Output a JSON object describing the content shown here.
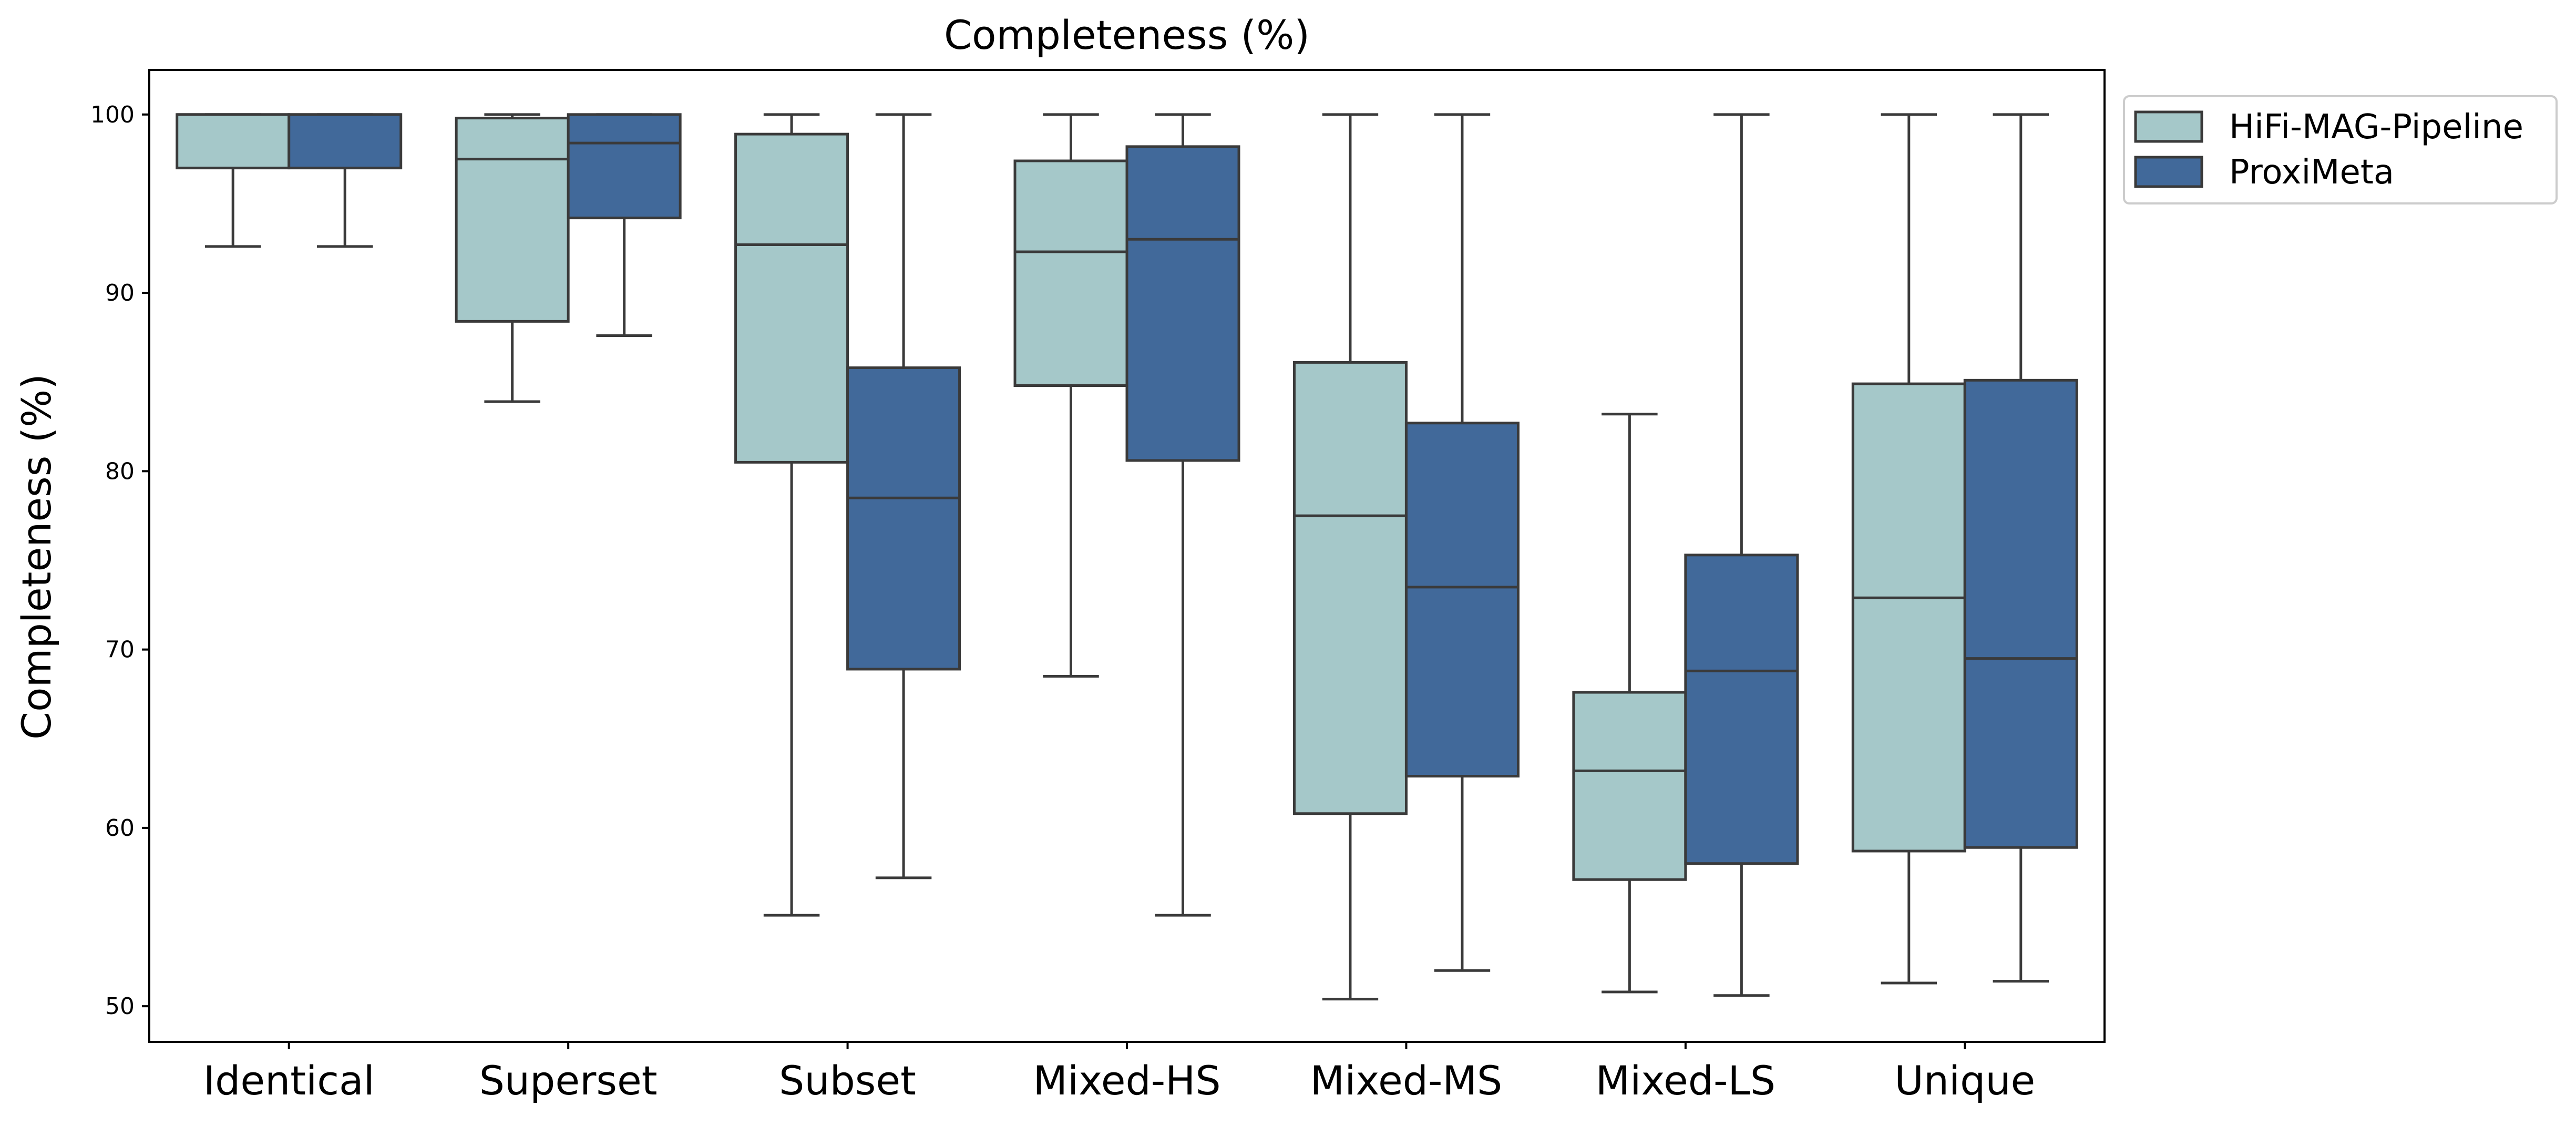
{
  "chart_data": {
    "type": "box",
    "title": "Completeness (%)",
    "xlabel": "",
    "ylabel": "Completeness (%)",
    "ylim": [
      48,
      102.5
    ],
    "yticks": [
      50,
      60,
      70,
      80,
      90,
      100
    ],
    "categories": [
      "Identical",
      "Superset",
      "Subset",
      "Mixed-HS",
      "Mixed-MS",
      "Mixed-LS",
      "Unique"
    ],
    "legend_position": "upper right, outside plot",
    "grid": false,
    "series": [
      {
        "name": "HiFi-MAG-Pipeline",
        "color": "#A5C8C9",
        "boxes": [
          {
            "whisker_low": 92.6,
            "q1": 97.0,
            "median": 100.0,
            "q3": 100.0,
            "whisker_high": 100.0
          },
          {
            "whisker_low": 83.9,
            "q1": 88.4,
            "median": 97.5,
            "q3": 99.8,
            "whisker_high": 100.0
          },
          {
            "whisker_low": 55.1,
            "q1": 80.5,
            "median": 92.7,
            "q3": 98.9,
            "whisker_high": 100.0
          },
          {
            "whisker_low": 68.5,
            "q1": 84.8,
            "median": 92.3,
            "q3": 97.4,
            "whisker_high": 100.0
          },
          {
            "whisker_low": 50.4,
            "q1": 60.8,
            "median": 77.5,
            "q3": 86.1,
            "whisker_high": 100.0
          },
          {
            "whisker_low": 50.8,
            "q1": 57.1,
            "median": 63.2,
            "q3": 67.6,
            "whisker_high": 83.2
          },
          {
            "whisker_low": 51.3,
            "q1": 58.7,
            "median": 72.9,
            "q3": 84.9,
            "whisker_high": 100.0
          }
        ]
      },
      {
        "name": "ProxiMeta",
        "color": "#41699A",
        "boxes": [
          {
            "whisker_low": 92.6,
            "q1": 97.0,
            "median": 100.0,
            "q3": 100.0,
            "whisker_high": 100.0
          },
          {
            "whisker_low": 87.6,
            "q1": 94.2,
            "median": 98.4,
            "q3": 100.0,
            "whisker_high": 100.0
          },
          {
            "whisker_low": 57.2,
            "q1": 68.9,
            "median": 78.5,
            "q3": 85.8,
            "whisker_high": 100.0
          },
          {
            "whisker_low": 55.1,
            "q1": 80.6,
            "median": 93.0,
            "q3": 98.2,
            "whisker_high": 100.0
          },
          {
            "whisker_low": 52.0,
            "q1": 62.9,
            "median": 73.5,
            "q3": 82.7,
            "whisker_high": 100.0
          },
          {
            "whisker_low": 50.6,
            "q1": 58.0,
            "median": 68.8,
            "q3": 75.3,
            "whisker_high": 100.0
          },
          {
            "whisker_low": 51.4,
            "q1": 58.9,
            "median": 69.5,
            "q3": 85.1,
            "whisker_high": 100.0
          }
        ]
      }
    ]
  }
}
